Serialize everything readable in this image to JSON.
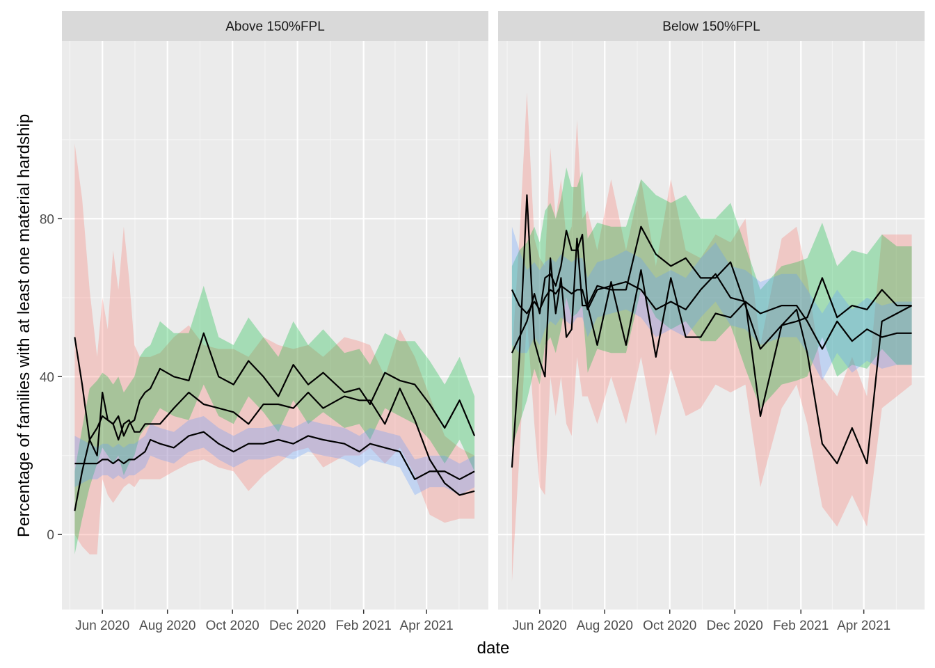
{
  "chart_data": {
    "type": "line",
    "xlabel": "date",
    "ylabel": "Percentage of families with at least one material hardship",
    "ylim": [
      -19,
      125
    ],
    "yticks": [
      0,
      40,
      80
    ],
    "xticks": [
      {
        "date": "2020-06-01",
        "label": "Jun 2020"
      },
      {
        "date": "2020-08-01",
        "label": "Aug 2020"
      },
      {
        "date": "2020-10-01",
        "label": "Oct 2020"
      },
      {
        "date": "2020-12-01",
        "label": "Dec 2020"
      },
      {
        "date": "2021-02-01",
        "label": "Feb 2021"
      },
      {
        "date": "2021-04-01",
        "label": "Apr 2021"
      }
    ],
    "grid": true,
    "ribbon_colors": {
      "red": "#F8766D",
      "green": "#00BA38",
      "blue": "#619CFF"
    },
    "panels": [
      {
        "title": "Above 150%FPL",
        "xlim": [
          "2020-04-24",
          "2021-05-29"
        ],
        "dates": [
          "2020-05-06",
          "2020-05-13",
          "2020-05-20",
          "2020-05-27",
          "2020-06-01",
          "2020-06-06",
          "2020-06-11",
          "2020-06-16",
          "2020-06-21",
          "2020-06-26",
          "2020-07-01",
          "2020-07-06",
          "2020-07-11",
          "2020-07-16",
          "2020-07-25",
          "2020-08-07",
          "2020-08-21",
          "2020-09-04",
          "2020-09-18",
          "2020-10-02",
          "2020-10-16",
          "2020-10-30",
          "2020-11-13",
          "2020-11-27",
          "2020-12-11",
          "2020-12-25",
          "2021-01-14",
          "2021-01-28",
          "2021-02-07",
          "2021-02-21",
          "2021-03-07",
          "2021-03-21",
          "2021-04-04",
          "2021-04-18",
          "2021-05-02",
          "2021-05-16"
        ],
        "series": [
          {
            "color": "red",
            "values": [
              50,
              38,
              24,
              20,
              36,
              29,
              28,
              24,
              28,
              29,
              26,
              26,
              28,
              28,
              28,
              32,
              36,
              33,
              32,
              31,
              28,
              33,
              33,
              32,
              36,
              32,
              35,
              34,
              34,
              28,
              37,
              29,
              19,
              13,
              10,
              11
            ],
            "lower": [
              0,
              -3,
              -5,
              -5,
              14,
              10,
              8,
              10,
              12,
              13,
              12,
              14,
              14,
              14,
              14,
              16,
              18,
              19,
              17,
              16,
              11,
              15,
              18,
              21,
              22,
              17,
              20,
              20,
              22,
              18,
              22,
              15,
              5,
              3,
              4,
              4
            ],
            "upper": [
              99,
              85,
              62,
              45,
              60,
              52,
              72,
              62,
              78,
              65,
              48,
              45,
              45,
              45,
              46,
              50,
              53,
              48,
              47,
              47,
              45,
              50,
              48,
              47,
              48,
              45,
              50,
              49,
              48,
              40,
              52,
              45,
              35,
              25,
              22,
              20
            ]
          },
          {
            "color": "green",
            "values": [
              6,
              16,
              24,
              27,
              30,
              29,
              28,
              30,
              25,
              28,
              29,
              34,
              36,
              37,
              42,
              40,
              39,
              51,
              40,
              38,
              44,
              40,
              35,
              43,
              38,
              41,
              36,
              37,
              33,
              41,
              39,
              38,
              33,
              27,
              34,
              25
            ],
            "lower": [
              -5,
              4,
              12,
              18,
              22,
              20,
              18,
              20,
              15,
              18,
              20,
              25,
              27,
              28,
              32,
              30,
              29,
              38,
              30,
              28,
              35,
              31,
              26,
              34,
              28,
              31,
              27,
              28,
              24,
              32,
              30,
              28,
              24,
              18,
              24,
              16
            ],
            "upper": [
              16,
              27,
              37,
              39,
              41,
              40,
              38,
              40,
              36,
              38,
              40,
              45,
              47,
              48,
              54,
              51,
              51,
              63,
              50,
              48,
              55,
              50,
              45,
              54,
              48,
              52,
              46,
              47,
              43,
              51,
              49,
              49,
              44,
              38,
              45,
              35
            ]
          },
          {
            "color": "blue",
            "values": [
              18,
              18,
              18,
              18,
              19,
              19,
              18,
              19,
              18,
              19,
              19,
              20,
              21,
              24,
              23,
              22,
              25,
              26,
              23,
              21,
              23,
              23,
              24,
              23,
              25,
              24,
              23,
              21,
              23,
              22,
              21,
              14,
              16,
              16,
              14,
              16
            ],
            "lower": [
              12,
              13,
              14,
              14,
              15,
              15,
              14,
              15,
              14,
              15,
              15,
              16,
              17,
              20,
              19,
              18,
              21,
              22,
              19,
              17,
              19,
              19,
              20,
              19,
              21,
              20,
              19,
              17,
              19,
              18,
              17,
              10,
              12,
              12,
              10,
              12
            ],
            "upper": [
              25,
              24,
              23,
              22,
              23,
              23,
              22,
              23,
              22,
              23,
              23,
              24,
              25,
              28,
              27,
              26,
              29,
              30,
              27,
              25,
              27,
              27,
              28,
              27,
              29,
              28,
              27,
              25,
              27,
              26,
              25,
              19,
              20,
              20,
              18,
              20
            ]
          }
        ]
      },
      {
        "title": "Below 150%FPL",
        "xlim": [
          "2020-04-23",
          "2021-05-28"
        ],
        "dates": [
          "2020-05-06",
          "2020-05-13",
          "2020-05-20",
          "2020-05-27",
          "2020-06-01",
          "2020-06-06",
          "2020-06-11",
          "2020-06-16",
          "2020-06-21",
          "2020-06-26",
          "2020-07-01",
          "2020-07-06",
          "2020-07-11",
          "2020-07-16",
          "2020-07-25",
          "2020-08-07",
          "2020-08-21",
          "2020-09-04",
          "2020-09-18",
          "2020-10-02",
          "2020-10-16",
          "2020-10-30",
          "2020-11-13",
          "2020-11-27",
          "2020-12-11",
          "2020-12-25",
          "2021-01-14",
          "2021-01-28",
          "2021-02-07",
          "2021-02-21",
          "2021-03-07",
          "2021-03-21",
          "2021-04-04",
          "2021-04-18",
          "2021-05-02",
          "2021-05-16"
        ],
        "series": [
          {
            "color": "red",
            "values": [
              17,
              45,
              86,
              49,
              44,
              40,
              70,
              56,
              65,
              50,
              52,
              75,
              58,
              58,
              48,
              64,
              48,
              67,
              45,
              65,
              50,
              50,
              56,
              55,
              59,
              30,
              53,
              57,
              46,
              23,
              18,
              27,
              18,
              54,
              56,
              58
            ],
            "lower": [
              -12,
              20,
              55,
              28,
              12,
              10,
              40,
              30,
              40,
              28,
              25,
              45,
              35,
              35,
              28,
              40,
              28,
              45,
              25,
              42,
              30,
              32,
              38,
              36,
              38,
              12,
              32,
              38,
              28,
              7,
              2,
              10,
              2,
              32,
              35,
              38
            ],
            "upper": [
              45,
              75,
              112,
              75,
              70,
              68,
              98,
              80,
              90,
              75,
              78,
              105,
              80,
              82,
              72,
              90,
              72,
              90,
              68,
              90,
              72,
              70,
              76,
              74,
              80,
              48,
              75,
              78,
              65,
              40,
              35,
              45,
              35,
              76,
              76,
              76
            ]
          },
          {
            "color": "green",
            "values": [
              46,
              50,
              54,
              61,
              56,
              65,
              66,
              63,
              68,
              77,
              72,
              72,
              76,
              58,
              63,
              62,
              62,
              78,
              71,
              68,
              70,
              65,
              65,
              69,
              58,
              47,
              53,
              54,
              55,
              65,
              55,
              58,
              57,
              62,
              58,
              58
            ],
            "lower": [
              22,
              28,
              34,
              42,
              38,
              48,
              50,
              46,
              52,
              60,
              55,
              56,
              58,
              41,
              47,
              46,
              46,
              62,
              55,
              52,
              54,
              49,
              49,
              53,
              42,
              32,
              38,
              39,
              40,
              50,
              40,
              43,
              42,
              47,
              43,
              43
            ],
            "upper": [
              68,
              72,
              74,
              78,
              74,
              82,
              84,
              80,
              85,
              93,
              88,
              88,
              92,
              75,
              79,
              78,
              78,
              90,
              86,
              84,
              86,
              80,
              80,
              84,
              73,
              62,
              68,
              69,
              70,
              79,
              68,
              72,
              71,
              76,
              73,
              73
            ]
          },
          {
            "color": "blue",
            "values": [
              62,
              58,
              56,
              59,
              57,
              60,
              62,
              61,
              63,
              62,
              61,
              62,
              62,
              57,
              62,
              63,
              64,
              62,
              57,
              59,
              57,
              62,
              66,
              60,
              59,
              56,
              58,
              58,
              54,
              47,
              54,
              49,
              52,
              50,
              51,
              51
            ],
            "lower": [
              48,
              46,
              46,
              50,
              48,
              52,
              54,
              53,
              55,
              54,
              53,
              55,
              55,
              50,
              55,
              56,
              57,
              55,
              50,
              52,
              50,
              55,
              59,
              53,
              52,
              48,
              50,
              50,
              46,
              39,
              46,
              41,
              44,
              42,
              43,
              43
            ],
            "upper": [
              78,
              72,
              67,
              69,
              67,
              69,
              70,
              69,
              71,
              70,
              69,
              70,
              70,
              65,
              69,
              70,
              72,
              70,
              65,
              67,
              65,
              70,
              74,
              68,
              67,
              64,
              66,
              66,
              62,
              56,
              62,
              57,
              60,
              58,
              59,
              59
            ]
          }
        ]
      }
    ]
  }
}
